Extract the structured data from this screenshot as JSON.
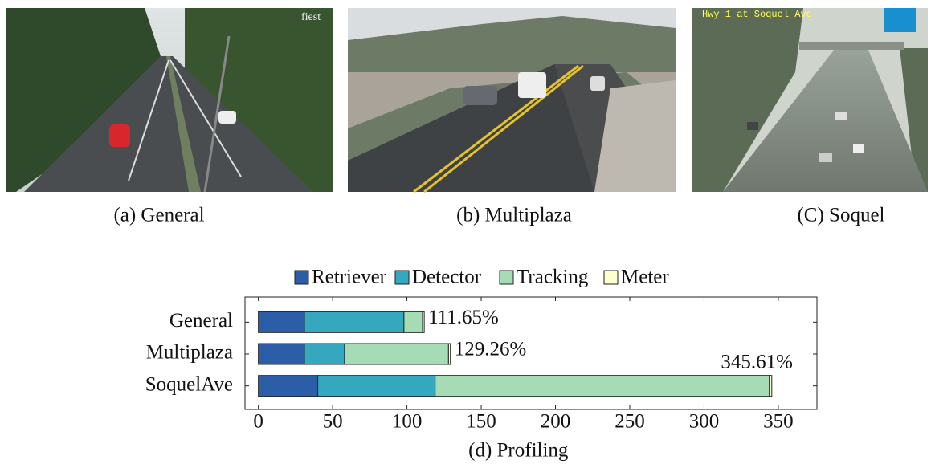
{
  "figure": {
    "panels": [
      {
        "caption": "(a) General"
      },
      {
        "caption": "(b) Multiplaza"
      },
      {
        "caption": "(C) Soquel",
        "overlay": "Hwy 1 at Soquel Ave"
      }
    ]
  },
  "chart_data": {
    "type": "stacked-barh",
    "xlabel": "(d) Profiling",
    "categories": [
      "General",
      "Multiplaza",
      "SoquelAve"
    ],
    "series": [
      {
        "name": "Retriever",
        "color": "#2b5ea7",
        "values": [
          31,
          31,
          40
        ]
      },
      {
        "name": "Detector",
        "color": "#35a8c0",
        "values": [
          67,
          27,
          79
        ]
      },
      {
        "name": "Tracking",
        "color": "#a6dcb5",
        "values": [
          12.5,
          70,
          225
        ]
      },
      {
        "name": "Meter",
        "color": "#ffffd0",
        "values": [
          1.15,
          1.26,
          1.61
        ]
      }
    ],
    "totals": [
      111.65,
      129.26,
      345.61
    ],
    "total_labels": [
      "111.65%",
      "129.26%",
      "345.61%"
    ],
    "xlim": [
      -9,
      376
    ],
    "xticks": [
      0,
      50,
      100,
      150,
      200,
      250,
      300,
      350
    ],
    "legend": "top"
  }
}
